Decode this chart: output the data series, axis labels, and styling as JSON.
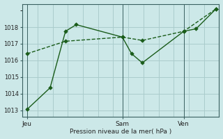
{
  "xlabel": "Pression niveau de la mer( hPa )",
  "background_color": "#cce8e8",
  "grid_color": "#aacccc",
  "line_color": "#1a5c1a",
  "ylim": [
    1012.6,
    1019.4
  ],
  "yticks": [
    1013,
    1014,
    1015,
    1016,
    1017,
    1018
  ],
  "xlim": [
    -0.3,
    12.5
  ],
  "day_labels": [
    "Jeu",
    "Sam",
    "Ven"
  ],
  "day_xticks": [
    0,
    6.2,
    10.2
  ],
  "vline_positions": [
    0,
    6.2,
    10.2
  ],
  "line1_x": [
    0,
    1.5,
    2.5,
    3.2,
    6.2,
    6.8,
    7.5,
    10.2,
    11.0,
    12.3
  ],
  "line1_y": [
    1013.05,
    1014.35,
    1017.75,
    1018.15,
    1017.4,
    1016.4,
    1015.85,
    1017.75,
    1017.9,
    1019.1
  ],
  "line2_x": [
    0,
    2.5,
    6.2,
    7.5,
    10.2,
    12.3
  ],
  "line2_y": [
    1016.4,
    1017.15,
    1017.4,
    1017.2,
    1017.75,
    1019.1
  ],
  "line1_style": "solid",
  "line2_style": "dashed"
}
